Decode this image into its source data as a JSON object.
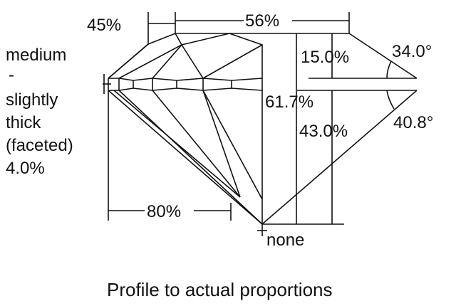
{
  "labels": {
    "crown_angle_pct": "45%",
    "table": "56%",
    "girdle_lines": [
      "medium",
      "-",
      "slightly",
      "thick",
      "(faceted)",
      "4.0%"
    ],
    "crown_height": "15.0%",
    "crown_angle": "34.0°",
    "total_depth": "61.7%",
    "pavilion_depth": "43.0%",
    "pavilion_angle": "40.8°",
    "lower_half": "80%",
    "culet": "none"
  },
  "caption": "Profile to actual proportions"
}
